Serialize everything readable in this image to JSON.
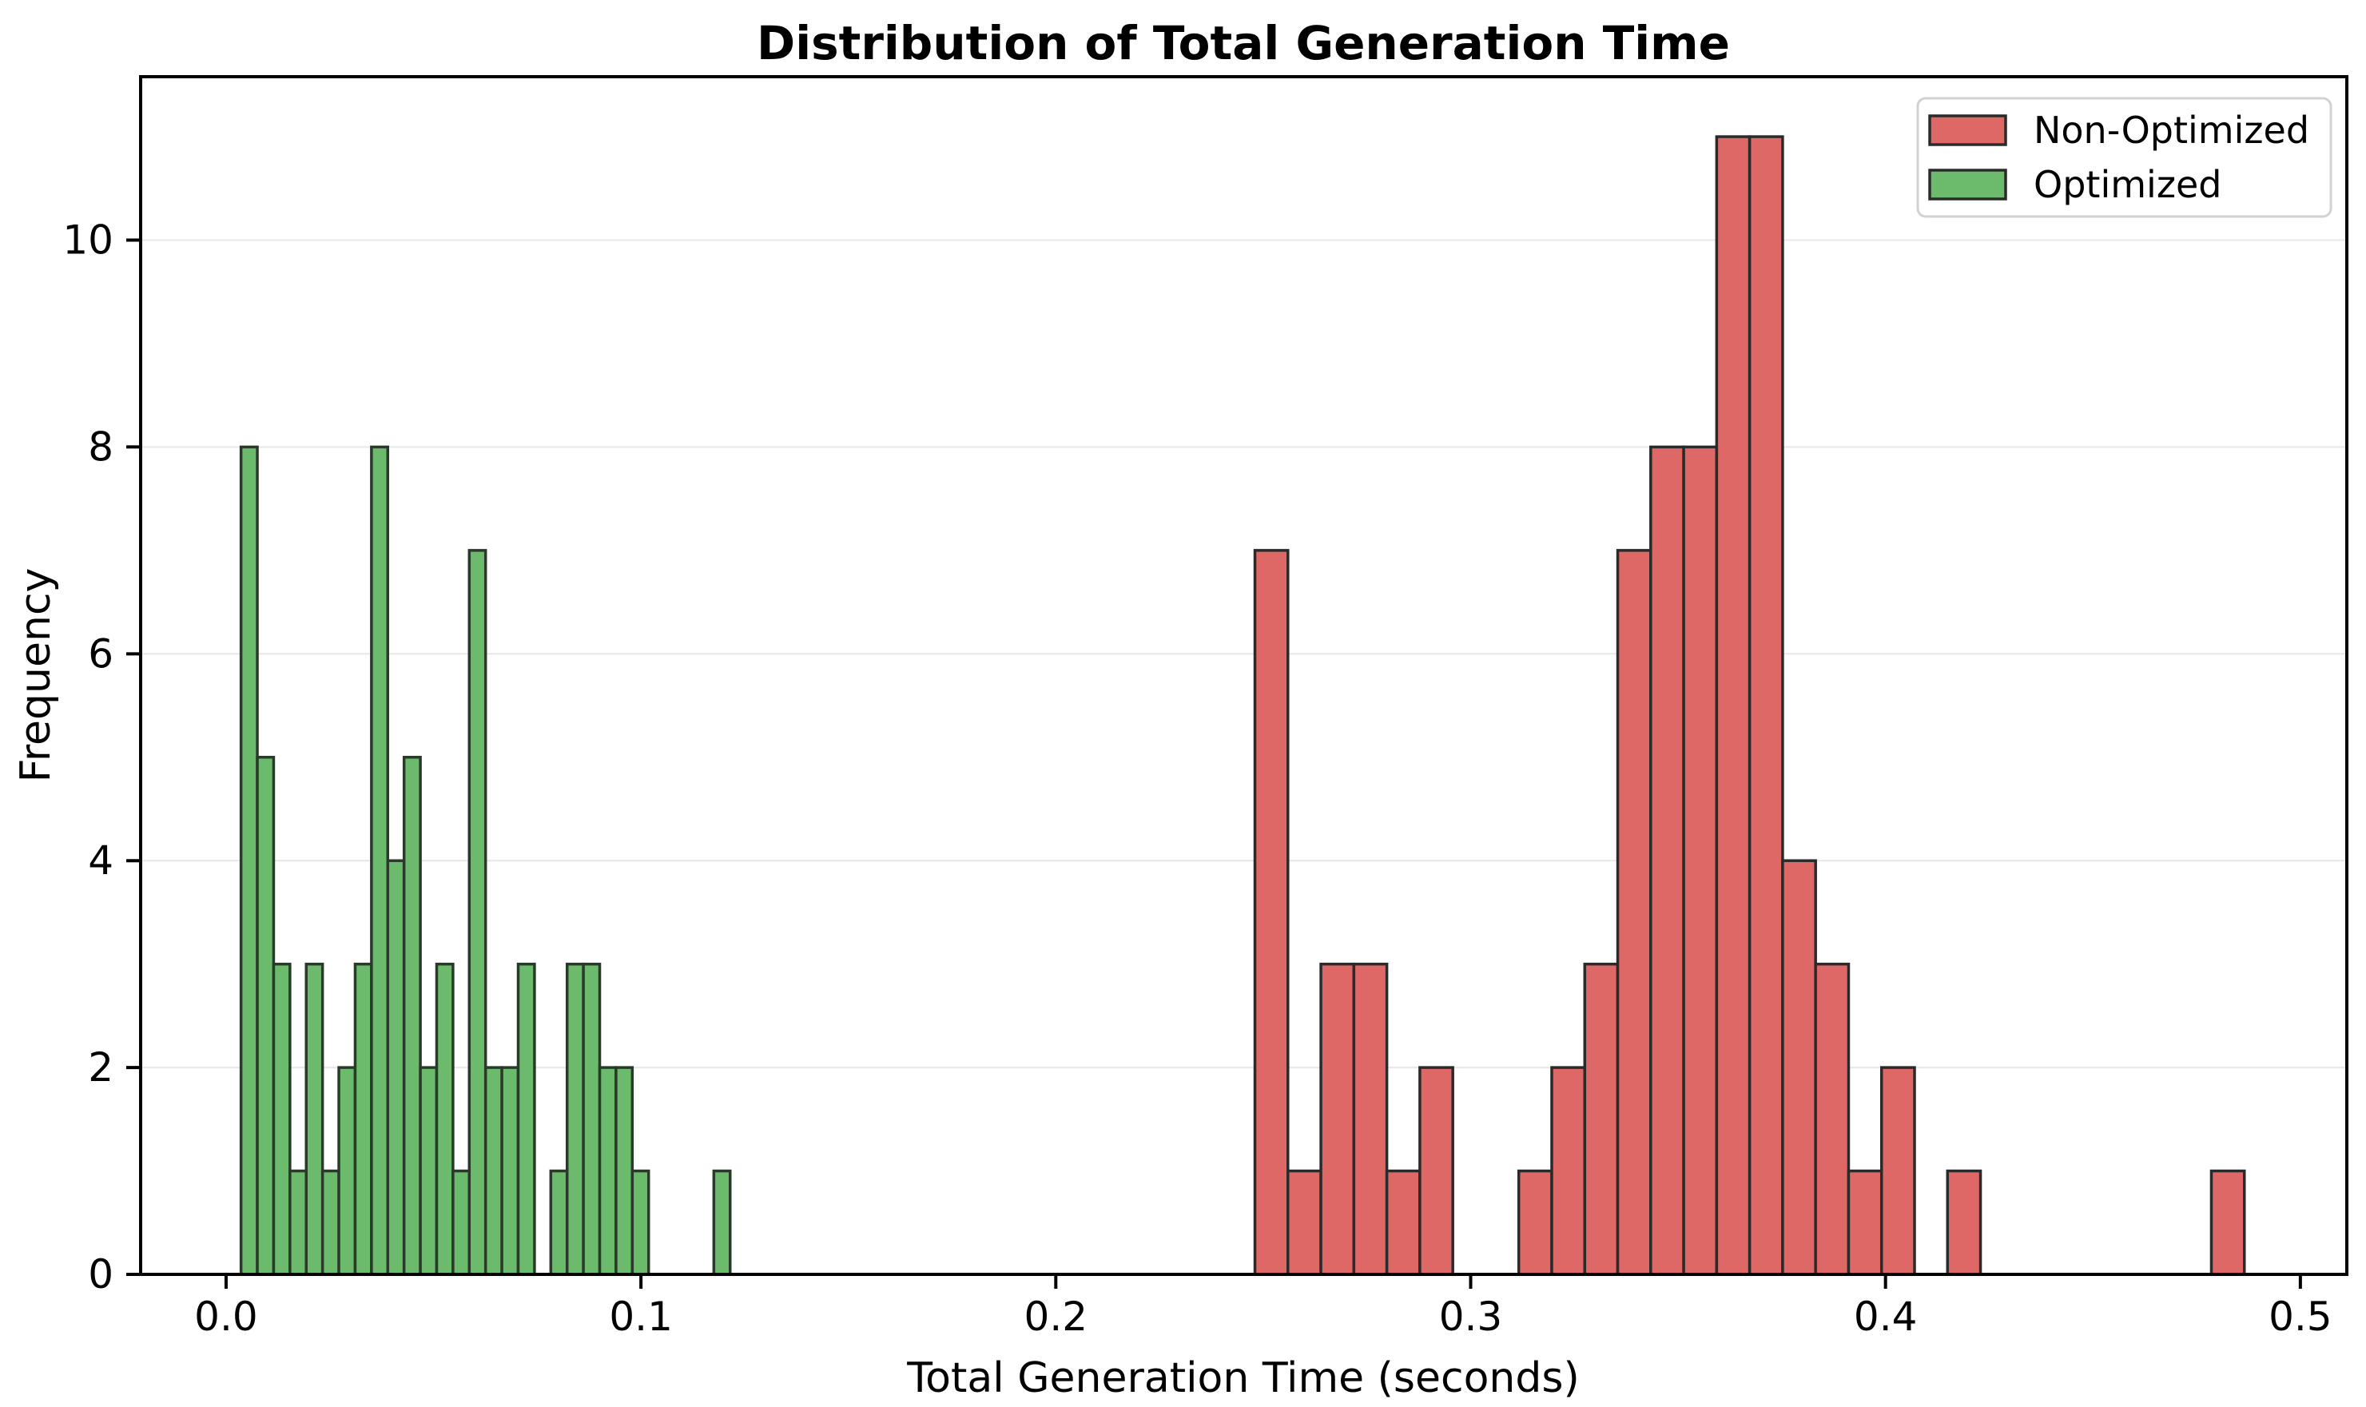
{
  "chart_data": {
    "type": "histogram",
    "title": "Distribution of Total Generation Time",
    "xlabel": "Total Generation Time (seconds)",
    "ylabel": "Frequency",
    "xlim": [
      -0.0206,
      0.5112
    ],
    "ylim": [
      0,
      11.58
    ],
    "x_ticks": [
      0.0,
      0.1,
      0.2,
      0.3,
      0.4,
      0.5
    ],
    "x_tick_labels": [
      "0.0",
      "0.1",
      "0.2",
      "0.3",
      "0.4",
      "0.5"
    ],
    "y_ticks": [
      0,
      2,
      4,
      6,
      8,
      10
    ],
    "y_tick_labels": [
      "0",
      "2",
      "4",
      "6",
      "8",
      "10"
    ],
    "grid": {
      "axis": "y",
      "color": "#e9e9e9",
      "ticks_with_gridlines": [
        2,
        4,
        6,
        8,
        10
      ]
    },
    "frame_color": "#000000",
    "background_color": "#ffffff",
    "series": [
      {
        "name": "Non-Optimized",
        "fill": "#dd6865",
        "edge": "#2a2a2a",
        "bin_start": 0.248,
        "bin_width": 0.00795,
        "counts": [
          7,
          1,
          3,
          3,
          1,
          2,
          0,
          0,
          1,
          2,
          3,
          7,
          8,
          8,
          11,
          11,
          4,
          3,
          1,
          2,
          0,
          1,
          0,
          0,
          0,
          0,
          0,
          0,
          0,
          1
        ]
      },
      {
        "name": "Optimized",
        "fill": "#6cbb6c",
        "edge": "#2a3a2a",
        "bin_start": 0.0036,
        "bin_width": 0.00393,
        "counts": [
          8,
          5,
          3,
          1,
          3,
          1,
          2,
          3,
          8,
          4,
          5,
          2,
          3,
          1,
          7,
          2,
          2,
          3,
          0,
          1,
          3,
          3,
          2,
          2,
          1,
          0,
          0,
          0,
          0,
          1
        ]
      }
    ],
    "legend": {
      "position": "upper right",
      "border_color": "#d2d2d2",
      "background": "#ffffff",
      "entries": [
        "Non-Optimized",
        "Optimized"
      ]
    }
  }
}
